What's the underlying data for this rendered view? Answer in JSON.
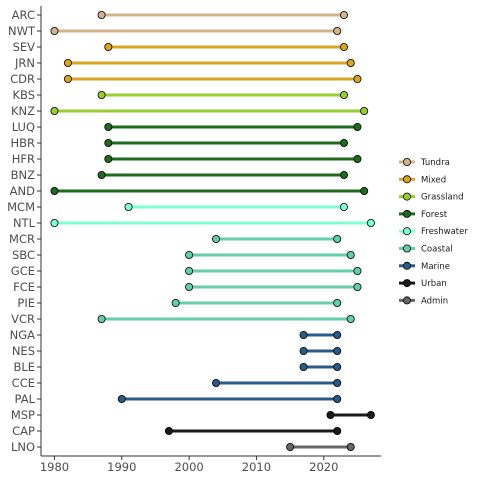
{
  "chart_data": {
    "type": "dumbbell",
    "title": "",
    "xlabel": "",
    "ylabel": "",
    "xlim": [
      1978,
      2028.5
    ],
    "x_ticks": [
      1980,
      1990,
      2000,
      2010,
      2020
    ],
    "grid": false,
    "legend_position": "right",
    "categories": [
      "Tundra",
      "Mixed",
      "Grassland",
      "Forest",
      "Freshwater",
      "Coastal",
      "Marine",
      "Urban",
      "Admin"
    ],
    "category_colors": {
      "Tundra": "#d2b48c",
      "Mixed": "#daa520",
      "Grassland": "#9acd32",
      "Forest": "#1e6b1e",
      "Freshwater": "#7fffd4",
      "Coastal": "#66cdaa",
      "Marine": "#2b5a87",
      "Urban": "#1a1a1a",
      "Admin": "#666666"
    },
    "sites": [
      {
        "label": "ARC",
        "category": "Tundra",
        "start": 1987,
        "end": 2023
      },
      {
        "label": "NWT",
        "category": "Tundra",
        "start": 1980,
        "end": 2022
      },
      {
        "label": "SEV",
        "category": "Mixed",
        "start": 1988,
        "end": 2023
      },
      {
        "label": "JRN",
        "category": "Mixed",
        "start": 1982,
        "end": 2024
      },
      {
        "label": "CDR",
        "category": "Mixed",
        "start": 1982,
        "end": 2025
      },
      {
        "label": "KBS",
        "category": "Grassland",
        "start": 1987,
        "end": 2023
      },
      {
        "label": "KNZ",
        "category": "Grassland",
        "start": 1980,
        "end": 2026
      },
      {
        "label": "LUQ",
        "category": "Forest",
        "start": 1988,
        "end": 2025
      },
      {
        "label": "HBR",
        "category": "Forest",
        "start": 1988,
        "end": 2023
      },
      {
        "label": "HFR",
        "category": "Forest",
        "start": 1988,
        "end": 2025
      },
      {
        "label": "BNZ",
        "category": "Forest",
        "start": 1987,
        "end": 2023
      },
      {
        "label": "AND",
        "category": "Forest",
        "start": 1980,
        "end": 2026
      },
      {
        "label": "MCM",
        "category": "Freshwater",
        "start": 1991,
        "end": 2023
      },
      {
        "label": "NTL",
        "category": "Freshwater",
        "start": 1980,
        "end": 2027
      },
      {
        "label": "MCR",
        "category": "Coastal",
        "start": 2004,
        "end": 2022
      },
      {
        "label": "SBC",
        "category": "Coastal",
        "start": 2000,
        "end": 2024
      },
      {
        "label": "GCE",
        "category": "Coastal",
        "start": 2000,
        "end": 2025
      },
      {
        "label": "FCE",
        "category": "Coastal",
        "start": 2000,
        "end": 2025
      },
      {
        "label": "PIE",
        "category": "Coastal",
        "start": 1998,
        "end": 2022
      },
      {
        "label": "VCR",
        "category": "Coastal",
        "start": 1987,
        "end": 2024
      },
      {
        "label": "NGA",
        "category": "Marine",
        "start": 2017,
        "end": 2022
      },
      {
        "label": "NES",
        "category": "Marine",
        "start": 2017,
        "end": 2022
      },
      {
        "label": "BLE",
        "category": "Marine",
        "start": 2017,
        "end": 2022
      },
      {
        "label": "CCE",
        "category": "Marine",
        "start": 2004,
        "end": 2022
      },
      {
        "label": "PAL",
        "category": "Marine",
        "start": 1990,
        "end": 2022
      },
      {
        "label": "MSP",
        "category": "Urban",
        "start": 2021,
        "end": 2027
      },
      {
        "label": "CAP",
        "category": "Urban",
        "start": 1997,
        "end": 2022
      },
      {
        "label": "LNO",
        "category": "Admin",
        "start": 2015,
        "end": 2024
      }
    ]
  }
}
